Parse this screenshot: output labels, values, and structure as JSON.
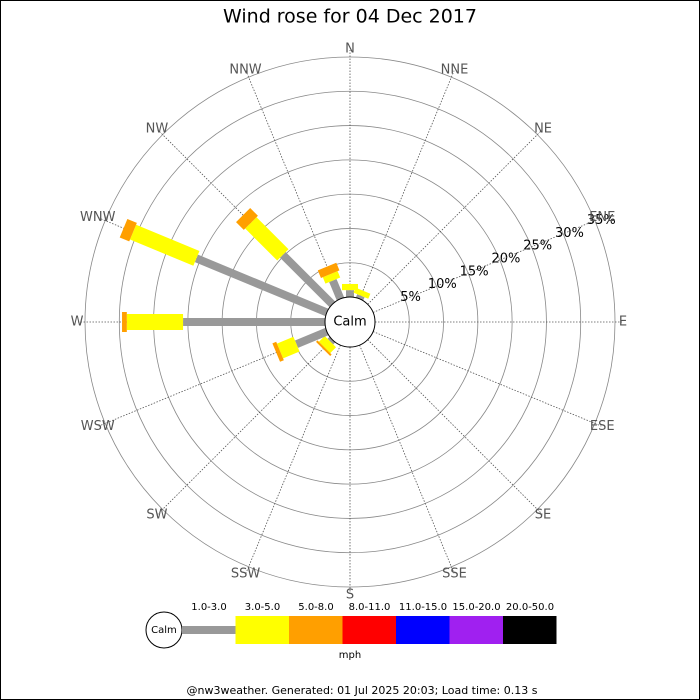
{
  "chart_data": {
    "type": "windrose",
    "title": "Wind rose for 04 Dec 2017",
    "center_label": "Calm",
    "directions": [
      "N",
      "NNE",
      "NE",
      "ENE",
      "E",
      "ESE",
      "SE",
      "SSE",
      "S",
      "SSW",
      "SW",
      "WSW",
      "W",
      "WNW",
      "NW",
      "NNW"
    ],
    "rlim": [
      0,
      35
    ],
    "rticks": [
      {
        "value": 5,
        "label": "5%"
      },
      {
        "value": 10,
        "label": "10%"
      },
      {
        "value": 15,
        "label": "15%"
      },
      {
        "value": 20,
        "label": "20%"
      },
      {
        "value": 25,
        "label": "25%"
      },
      {
        "value": 30,
        "label": "30%"
      },
      {
        "value": 35,
        "label": "35%"
      }
    ],
    "series": [
      {
        "name": "1.0-3.0",
        "color": "#999999",
        "values": [
          1.0,
          0.5,
          0,
          0,
          0,
          0,
          0,
          0,
          0,
          0,
          0.4,
          4.8,
          20.7,
          20.6,
          10.2,
          2.9
        ]
      },
      {
        "name": "3.0-5.0",
        "color": "#ffff00",
        "values": [
          0.9,
          0.8,
          0,
          0,
          0,
          0,
          0,
          0,
          0,
          0,
          1.2,
          2.6,
          8.2,
          10.0,
          6.6,
          1.0
        ]
      },
      {
        "name": "5.0-8.0",
        "color": "#ff9f00",
        "values": [
          0,
          0,
          0,
          0,
          0,
          0,
          0,
          0,
          0,
          0,
          0.3,
          0.6,
          0.7,
          1.5,
          1.6,
          1.2
        ]
      },
      {
        "name": "8.0-11.0",
        "color": "#ff0000",
        "values": [
          0,
          0,
          0,
          0,
          0,
          0,
          0,
          0,
          0,
          0,
          0,
          0,
          0,
          0,
          0,
          0
        ]
      },
      {
        "name": "11.0-15.0",
        "color": "#0000ff",
        "values": [
          0,
          0,
          0,
          0,
          0,
          0,
          0,
          0,
          0,
          0,
          0,
          0,
          0,
          0,
          0,
          0
        ]
      },
      {
        "name": "15.0-20.0",
        "color": "#a020f0",
        "values": [
          0,
          0,
          0,
          0,
          0,
          0,
          0,
          0,
          0,
          0,
          0,
          0,
          0,
          0,
          0,
          0
        ]
      },
      {
        "name": "20.0-50.0",
        "color": "#000000",
        "values": [
          0,
          0,
          0,
          0,
          0,
          0,
          0,
          0,
          0,
          0,
          0,
          0,
          0,
          0,
          0,
          0
        ]
      }
    ],
    "legend_unit": "mph",
    "footer": "@nw3weather. Generated: 01 Jul 2025 20:03; Load time: 0.13 s"
  }
}
